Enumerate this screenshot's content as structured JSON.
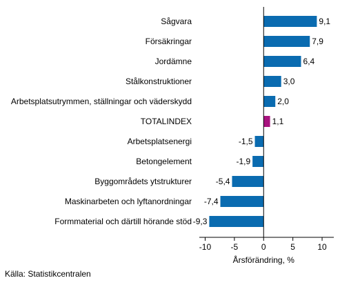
{
  "chart_data": {
    "type": "bar",
    "orientation": "horizontal",
    "categories": [
      "Sågvara",
      "Försäkringar",
      "Jordämne",
      "Stålkonstruktioner",
      "Arbetsplatsutrymmen, ställningar och väderskydd",
      "TOTALINDEX",
      "Arbetsplatsenergi",
      "Betongelement",
      "Byggområdets ytstrukturer",
      "Maskinarbeten och lyftanordningar",
      "Formmaterial och därtill hörande stöd"
    ],
    "values": [
      9.1,
      7.9,
      6.4,
      3.0,
      2.0,
      1.1,
      -1.5,
      -1.9,
      -5.4,
      -7.4,
      -9.3
    ],
    "value_labels": [
      "9,1",
      "7,9",
      "6,4",
      "3,0",
      "2,0",
      "1,1",
      "-1,5",
      "-1,9",
      "-5,4",
      "-7,4",
      "-9,3"
    ],
    "highlight_category": "TOTALINDEX",
    "xlabel": "Årsförändring, %",
    "xlim": [
      -11,
      12
    ],
    "xticks": [
      -10,
      -5,
      0,
      5,
      10
    ],
    "xtick_labels": [
      "-10",
      "-5",
      "0",
      "5",
      "10"
    ],
    "grid": false,
    "colors": {
      "bar": "#0a6bb0",
      "highlight": "#a8137f",
      "axis": "#000000"
    }
  },
  "source": "Källa: Statistikcentralen"
}
